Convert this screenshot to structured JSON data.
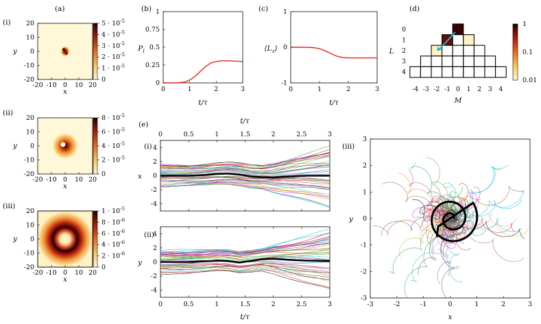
{
  "panel_labels": {
    "a": "(a)",
    "b": "(b)",
    "c": "(c)",
    "d": "(d)",
    "e": "(e)",
    "i": "(i)",
    "ii": "(ii)",
    "iii": "(iii)"
  },
  "colors": {
    "red": "#e4261b",
    "black": "#000000",
    "map_dark": "#1a0000",
    "map_light": "#fff8d8"
  },
  "chart_data": [
    {
      "type": "heatmap",
      "id": "a_i",
      "xlabel": "x",
      "ylabel": "y",
      "xlim": [
        -20,
        20
      ],
      "ylim": [
        -20,
        20
      ],
      "xticks": [
        "-20",
        "-10",
        "0",
        "10",
        "20"
      ],
      "yticks": [
        "20",
        "10",
        "0",
        "-10",
        "-20"
      ],
      "colorbar": {
        "min": 0,
        "max": 5e-05,
        "labels": [
          "5 · 10^-5",
          "4 · 10^-5",
          "3 · 10^-5",
          "2 · 10^-5",
          "1 · 10^-5",
          "0"
        ]
      },
      "structure": "small bright spot near origin"
    },
    {
      "type": "heatmap",
      "id": "a_ii",
      "xlabel": "x",
      "ylabel": "y",
      "xlim": [
        -20,
        20
      ],
      "ylim": [
        -20,
        20
      ],
      "xticks": [
        "-20",
        "-10",
        "0",
        "10",
        "20"
      ],
      "yticks": [
        "20",
        "10",
        "0",
        "-10",
        "-20"
      ],
      "colorbar": {
        "min": 0,
        "max": 8e-05,
        "labels": [
          "8 · 10^-5",
          "6 · 10^-5",
          "4 · 10^-5",
          "2 · 10^-5",
          "0"
        ]
      },
      "structure": "spot of radius ~7 with dark core"
    },
    {
      "type": "heatmap",
      "id": "a_iii",
      "xlabel": "x",
      "ylabel": "y",
      "xlim": [
        -20,
        20
      ],
      "ylim": [
        -20,
        20
      ],
      "xticks": [
        "-20",
        "-10",
        "0",
        "10",
        "20"
      ],
      "yticks": [
        "20",
        "10",
        "0",
        "-10",
        "-20"
      ],
      "colorbar": {
        "min": 0,
        "max": 1e-05,
        "labels": [
          "1 · 10^-5",
          "8 · 10^-6",
          "6 · 10^-6",
          "4 · 10^-6",
          "2 · 10^-6",
          "0"
        ]
      },
      "structure": "ring of radius ~10"
    },
    {
      "type": "line",
      "id": "b",
      "xlabel": "t/τ",
      "ylabel": "P_l",
      "xlim": [
        0,
        3
      ],
      "ylim": [
        0,
        1
      ],
      "xticks": [
        "0",
        "1",
        "2",
        "3"
      ],
      "yticks": [
        "1",
        "0.75",
        "0.5",
        "0.25",
        "0"
      ],
      "series": [
        {
          "x": [
            0,
            0.5,
            0.8,
            1.0,
            1.2,
            1.4,
            1.6,
            1.8,
            2.0,
            2.2,
            2.5,
            3.0
          ],
          "y": [
            0,
            0.0,
            0.01,
            0.04,
            0.09,
            0.16,
            0.23,
            0.28,
            0.3,
            0.31,
            0.31,
            0.3
          ]
        }
      ]
    },
    {
      "type": "line",
      "id": "c",
      "xlabel": "t/τ",
      "ylabel": "⟨L_z⟩",
      "xlim": [
        0,
        3
      ],
      "ylim": [
        -1,
        1
      ],
      "xticks": [
        "0",
        "1",
        "2",
        "3"
      ],
      "yticks": [
        "1",
        "0",
        "-1"
      ],
      "series": [
        {
          "x": [
            0,
            0.5,
            0.8,
            1.0,
            1.2,
            1.4,
            1.6,
            1.8,
            2.0,
            2.5,
            3.0
          ],
          "y": [
            0,
            0,
            -0.01,
            -0.04,
            -0.1,
            -0.18,
            -0.25,
            -0.29,
            -0.3,
            -0.3,
            -0.3
          ]
        }
      ]
    },
    {
      "type": "heatmap",
      "id": "d",
      "xlabel": "M",
      "ylabel": "L",
      "xticks": [
        "-4",
        "-3",
        "-2",
        "-1",
        "0",
        "1",
        "2",
        "3",
        "4"
      ],
      "yticks": [
        "0",
        "1",
        "2",
        "3",
        "4"
      ],
      "colorbar": {
        "scale": "log",
        "labels": [
          "1",
          "0.1",
          "0.01"
        ]
      },
      "cells": [
        {
          "L": 0,
          "M": 0,
          "value": 1.0
        },
        {
          "L": 1,
          "M": -1,
          "value": 0.8
        },
        {
          "L": 1,
          "M": 1,
          "value": 0.01
        },
        {
          "L": 2,
          "M": -2,
          "value": 0.01
        }
      ],
      "arrow": {
        "from": [
          -2,
          2
        ],
        "to": [
          0,
          0
        ]
      }
    },
    {
      "type": "line",
      "id": "e_i",
      "xlabel": "t/τ",
      "ylabel": "x",
      "xlim": [
        0,
        3
      ],
      "ylim": [
        -5,
        5
      ],
      "xticks": [
        "0",
        "0.5",
        "1",
        "1.5",
        "2",
        "2.5",
        "3"
      ],
      "yticks": [
        "4",
        "2",
        "0",
        "-2",
        "-4"
      ],
      "mean": {
        "x": [
          0,
          0.5,
          0.8,
          1.0,
          1.2,
          1.4,
          1.6,
          1.8,
          2.0,
          2.3,
          2.6,
          3.0
        ],
        "y": [
          0,
          0,
          0.1,
          0.25,
          0.3,
          0.15,
          -0.1,
          -0.2,
          -0.25,
          -0.1,
          0,
          0
        ]
      }
    },
    {
      "type": "line",
      "id": "e_ii",
      "xlabel": "t/τ",
      "ylabel": "y",
      "xlim": [
        0,
        3
      ],
      "ylim": [
        -5,
        5
      ],
      "xticks": [
        "0",
        "0.5",
        "1",
        "1.5",
        "2",
        "2.5",
        "3"
      ],
      "yticks": [
        "4",
        "2",
        "0",
        "-2",
        "-4"
      ],
      "mean": {
        "x": [
          0,
          0.5,
          0.8,
          1.0,
          1.2,
          1.4,
          1.6,
          1.8,
          2.0,
          2.3,
          2.6,
          3.0
        ],
        "y": [
          0,
          0,
          0.1,
          0.2,
          0.15,
          -0.05,
          0.15,
          0.4,
          0.45,
          0.3,
          0.2,
          0.15
        ]
      }
    },
    {
      "type": "scatter",
      "id": "e_iii",
      "xlabel": "x",
      "ylabel": "y",
      "xlim": [
        -3,
        3
      ],
      "ylim": [
        -3,
        3
      ],
      "xticks": [
        "-3",
        "-2",
        "-1",
        "0",
        "1",
        "2",
        "3"
      ],
      "yticks": [
        "3",
        "2",
        "1",
        "0",
        "-1",
        "-2",
        "-3"
      ],
      "structure": "trajectories in the x-y plane; mean spiral near origin"
    }
  ],
  "axis_titles": {
    "x": "x",
    "y": "y",
    "t": "t/τ",
    "P": "P",
    "P_sub": "l",
    "Lz": "⟨L",
    "Lz_sub": "z",
    "Lz_close": "⟩",
    "L": "L",
    "M": "M"
  }
}
